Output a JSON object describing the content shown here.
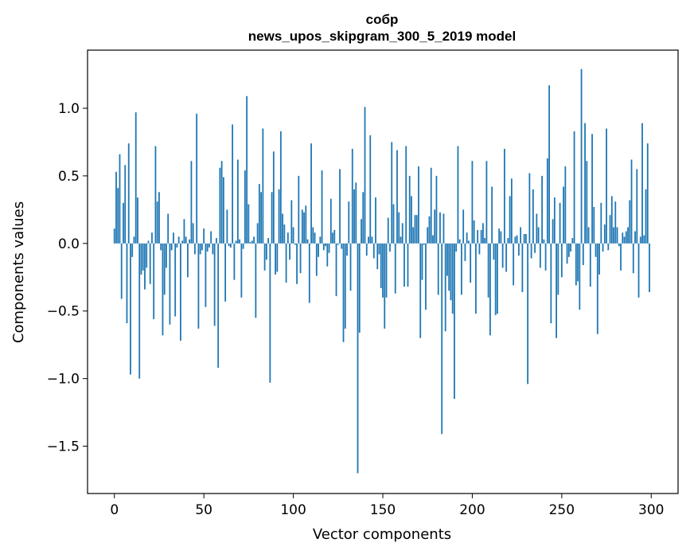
{
  "chart_data": {
    "type": "bar",
    "title": "собр",
    "subtitle": "news_upos_skipgram_300_5_2019 model",
    "xlabel": "Vector components",
    "ylabel": "Components values",
    "xlim": [
      -15,
      315
    ],
    "ylim": [
      -1.85,
      1.43
    ],
    "xticks": [
      0,
      50,
      100,
      150,
      200,
      250,
      300
    ],
    "xtick_labels": [
      "0",
      "50",
      "100",
      "150",
      "200",
      "250",
      "300"
    ],
    "yticks": [
      -1.5,
      -1.0,
      -0.5,
      0.0,
      0.5,
      1.0
    ],
    "ytick_labels": [
      "−1.5",
      "−1.0",
      "−0.5",
      "0.0",
      "0.5",
      "1.0"
    ],
    "bar_color": "#1f77b4",
    "grid": false,
    "x": [
      0,
      1,
      2,
      3,
      4,
      5,
      6,
      7,
      8,
      9,
      10,
      11,
      12,
      13,
      14,
      15,
      16,
      17,
      18,
      19,
      20,
      21,
      22,
      23,
      24,
      25,
      26,
      27,
      28,
      29,
      30,
      31,
      32,
      33,
      34,
      35,
      36,
      37,
      38,
      39,
      40,
      41,
      42,
      43,
      44,
      45,
      46,
      47,
      48,
      49,
      50,
      51,
      52,
      53,
      54,
      55,
      56,
      57,
      58,
      59,
      60,
      61,
      62,
      63,
      64,
      65,
      66,
      67,
      68,
      69,
      70,
      71,
      72,
      73,
      74,
      75,
      76,
      77,
      78,
      79,
      80,
      81,
      82,
      83,
      84,
      85,
      86,
      87,
      88,
      89,
      90,
      91,
      92,
      93,
      94,
      95,
      96,
      97,
      98,
      99,
      100,
      101,
      102,
      103,
      104,
      105,
      106,
      107,
      108,
      109,
      110,
      111,
      112,
      113,
      114,
      115,
      116,
      117,
      118,
      119,
      120,
      121,
      122,
      123,
      124,
      125,
      126,
      127,
      128,
      129,
      130,
      131,
      132,
      133,
      134,
      135,
      136,
      137,
      138,
      139,
      140,
      141,
      142,
      143,
      144,
      145,
      146,
      147,
      148,
      149,
      150,
      151,
      152,
      153,
      154,
      155,
      156,
      157,
      158,
      159,
      160,
      161,
      162,
      163,
      164,
      165,
      166,
      167,
      168,
      169,
      170,
      171,
      172,
      173,
      174,
      175,
      176,
      177,
      178,
      179,
      180,
      181,
      182,
      183,
      184,
      185,
      186,
      187,
      188,
      189,
      190,
      191,
      192,
      193,
      194,
      195,
      196,
      197,
      198,
      199,
      200,
      201,
      202,
      203,
      204,
      205,
      206,
      207,
      208,
      209,
      210,
      211,
      212,
      213,
      214,
      215,
      216,
      217,
      218,
      219,
      220,
      221,
      222,
      223,
      224,
      225,
      226,
      227,
      228,
      229,
      230,
      231,
      232,
      233,
      234,
      235,
      236,
      237,
      238,
      239,
      240,
      241,
      242,
      243,
      244,
      245,
      246,
      247,
      248,
      249,
      250,
      251,
      252,
      253,
      254,
      255,
      256,
      257,
      258,
      259,
      260,
      261,
      262,
      263,
      264,
      265,
      266,
      267,
      268,
      269,
      270,
      271,
      272,
      273,
      274,
      275,
      276,
      277,
      278,
      279,
      280,
      281,
      282,
      283,
      284,
      285,
      286,
      287,
      288,
      289,
      290,
      291,
      292,
      293,
      294,
      295,
      296,
      297,
      298,
      299
    ],
    "values": [
      0.11,
      0.53,
      0.41,
      0.66,
      -0.41,
      0.3,
      0.58,
      -0.59,
      0.74,
      -0.97,
      -0.1,
      0.05,
      0.97,
      0.34,
      -1.0,
      -0.23,
      -0.2,
      -0.34,
      -0.18,
      0.02,
      -0.3,
      0.08,
      -0.56,
      0.72,
      0.31,
      0.38,
      -0.05,
      -0.68,
      -0.38,
      -0.18,
      0.22,
      -0.6,
      -0.05,
      0.08,
      -0.54,
      -0.03,
      0.05,
      -0.72,
      0.02,
      0.18,
      0.05,
      -0.25,
      0.03,
      0.61,
      0.15,
      -0.08,
      0.96,
      -0.63,
      -0.08,
      -0.05,
      0.11,
      -0.47,
      -0.06,
      -0.03,
      0.09,
      -0.08,
      -0.61,
      0.04,
      -0.92,
      0.56,
      0.61,
      0.49,
      -0.43,
      0.25,
      -0.02,
      -0.03,
      0.88,
      -0.27,
      0.02,
      0.62,
      0.03,
      -0.4,
      -0.04,
      0.54,
      1.09,
      0.29,
      0.01,
      0.02,
      0.05,
      -0.55,
      0.15,
      0.44,
      0.38,
      0.85,
      -0.2,
      -0.12,
      0.04,
      -1.03,
      0.38,
      0.68,
      -0.23,
      -0.21,
      0.4,
      0.83,
      0.22,
      0.14,
      -0.29,
      0.08,
      -0.12,
      0.32,
      0.12,
      -0.01,
      -0.3,
      0.5,
      -0.22,
      0.25,
      0.23,
      0.28,
      0.03,
      -0.44,
      0.74,
      0.12,
      0.08,
      -0.24,
      -0.1,
      0.05,
      0.54,
      -0.05,
      -0.02,
      -0.17,
      -0.07,
      0.33,
      0.08,
      0.1,
      -0.39,
      -0.01,
      0.55,
      -0.04,
      -0.73,
      -0.63,
      -0.09,
      0.31,
      -0.35,
      0.7,
      0.4,
      0.45,
      -1.7,
      -0.66,
      0.18,
      0.38,
      1.01,
      -0.09,
      0.05,
      0.8,
      0.05,
      -0.11,
      0.34,
      -0.19,
      -0.08,
      -0.33,
      -0.4,
      -0.63,
      -0.4,
      0.19,
      -0.06,
      0.75,
      0.29,
      -0.37,
      0.69,
      0.23,
      0.05,
      0.15,
      -0.32,
      0.72,
      -0.32,
      0.5,
      0.35,
      0.12,
      0.21,
      0.21,
      0.57,
      -0.7,
      -0.27,
      -0.01,
      -0.49,
      0.12,
      0.2,
      0.56,
      0.06,
      0.25,
      0.5,
      -0.38,
      0.23,
      -1.41,
      0.22,
      -0.65,
      -0.24,
      -0.35,
      -0.42,
      -0.52,
      -1.15,
      -0.06,
      0.72,
      0.03,
      -0.38,
      0.25,
      -0.13,
      0.08,
      0.02,
      -0.29,
      0.61,
      0.17,
      -0.52,
      0.1,
      -0.08,
      0.1,
      0.15,
      0.04,
      0.61,
      -0.4,
      -0.68,
      0.42,
      -0.12,
      -0.53,
      -0.52,
      0.11,
      0.09,
      -0.18,
      0.7,
      -0.21,
      0.04,
      0.35,
      0.48,
      -0.31,
      0.05,
      0.06,
      -0.09,
      0.12,
      -0.36,
      0.07,
      0.07,
      -1.04,
      0.52,
      -0.11,
      0.4,
      -0.07,
      0.22,
      0.12,
      -0.18,
      0.5,
      0.03,
      -0.2,
      0.63,
      1.17,
      -0.59,
      0.18,
      0.34,
      -0.7,
      -0.38,
      0.3,
      -0.25,
      0.42,
      0.57,
      -0.15,
      -0.1,
      -0.06,
      0.04,
      0.83,
      -0.31,
      -0.28,
      -0.49,
      1.29,
      -0.16,
      0.89,
      0.61,
      0.12,
      -0.32,
      0.81,
      0.27,
      -0.1,
      -0.67,
      -0.23,
      0.3,
      -0.06,
      0.14,
      0.85,
      -0.05,
      0.21,
      0.35,
      0.12,
      0.31,
      0.12,
      -0.02,
      -0.2,
      0.08,
      0.05,
      0.09,
      0.12,
      0.32,
      0.62,
      -0.22,
      0.09,
      0.55,
      -0.4,
      0.05,
      0.89,
      0.06,
      0.4,
      0.74,
      -0.36
    ]
  }
}
